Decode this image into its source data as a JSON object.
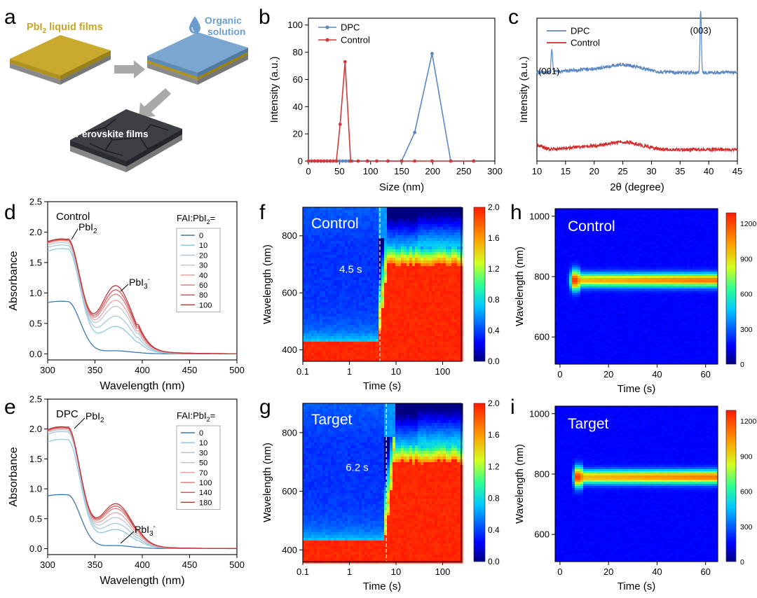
{
  "figure": {
    "panel_letters": [
      "a",
      "b",
      "c",
      "d",
      "e",
      "f",
      "g",
      "h",
      "i"
    ]
  },
  "schematic": {
    "film1_label": "PbI",
    "film1_sub": "2",
    "film1_rest": " liquid films",
    "solution_label_1": "Organic",
    "solution_label_2": "solution",
    "film3_label": "Perovskite films",
    "colors": {
      "pbi2": "#c9a92e",
      "organic": "#7aa6cf",
      "perovskite": "#3c4045"
    }
  },
  "chart_data": [
    {
      "panel": "b",
      "type": "line",
      "xlabel": "Size (nm)",
      "ylabel": "Intensity (a.u.)",
      "xlim": [
        0,
        300
      ],
      "ylim": [
        0,
        105
      ],
      "xticks": [
        0,
        50,
        100,
        150,
        200,
        250,
        300
      ],
      "yticks": [
        0,
        20,
        40,
        60,
        80,
        100
      ],
      "legend": [
        "DPC",
        "Control"
      ],
      "series": [
        {
          "name": "DPC",
          "color": "#5b87c0",
          "x": [
            0,
            5,
            10,
            15,
            20,
            25,
            30,
            35,
            40,
            45,
            50,
            55,
            60,
            65,
            70,
            80,
            95,
            110,
            128,
            150,
            171,
            199,
            229,
            266
          ],
          "y": [
            0,
            0,
            0,
            0,
            0,
            0,
            0,
            0,
            0,
            0,
            0,
            0,
            0,
            0,
            0,
            0,
            0,
            0,
            0,
            0,
            21,
            79,
            0,
            0
          ]
        },
        {
          "name": "Control",
          "color": "#cf3a3a",
          "x": [
            0,
            5,
            10,
            15,
            20,
            25,
            30,
            35,
            40,
            45,
            51,
            59,
            68,
            80,
            95,
            110,
            128,
            150,
            171,
            199,
            229,
            266
          ],
          "y": [
            0,
            0,
            0,
            0,
            0,
            0,
            0,
            0,
            0,
            0,
            27,
            73,
            0,
            0,
            0,
            0,
            0,
            0,
            0,
            0,
            0,
            0
          ]
        }
      ]
    },
    {
      "panel": "c",
      "type": "line",
      "xlabel": "2θ (degree)",
      "ylabel": "Intensity (a.u.)",
      "xlim": [
        10,
        45
      ],
      "xticks": [
        10,
        15,
        20,
        25,
        30,
        35,
        40,
        45
      ],
      "legend": [
        "DPC",
        "Control"
      ],
      "annotations": [
        "(001)",
        "(003)"
      ],
      "peaks": [
        {
          "x": 12.6,
          "label": "(001)"
        },
        {
          "x": 38.6,
          "label": "(003)"
        }
      ],
      "series": [
        {
          "name": "DPC",
          "color": "#5b87c0",
          "baseline": 0.62
        },
        {
          "name": "Control",
          "color": "#cf2b2b",
          "baseline": 0.08
        }
      ]
    },
    {
      "panel": "d",
      "type": "line",
      "title": "Control",
      "xlabel": "Wavelength (nm)",
      "ylabel": "Absorbance",
      "xlim": [
        300,
        500
      ],
      "ylim": [
        -0.1,
        2.5
      ],
      "xticks": [
        300,
        350,
        400,
        450,
        500
      ],
      "yticks": [
        0.0,
        0.5,
        1.0,
        1.5,
        2.0,
        2.5
      ],
      "peak_labels": [
        "PbI2",
        "PbI3-"
      ],
      "legend_title": "FAI:PbI2=",
      "series": [
        {
          "name": "0",
          "a320": 0.86,
          "a370": 0.05
        },
        {
          "name": "10",
          "a320": 1.72,
          "a370": 0.45
        },
        {
          "name": "20",
          "a320": 1.78,
          "a370": 0.62
        },
        {
          "name": "30",
          "a320": 1.82,
          "a370": 0.78
        },
        {
          "name": "40",
          "a320": 1.85,
          "a370": 0.88
        },
        {
          "name": "60",
          "a320": 1.86,
          "a370": 0.98
        },
        {
          "name": "80",
          "a320": 1.87,
          "a370": 1.05
        },
        {
          "name": "100",
          "a320": 1.88,
          "a370": 1.12
        }
      ]
    },
    {
      "panel": "e",
      "type": "line",
      "title": "DPC",
      "xlabel": "Wavelength (nm)",
      "ylabel": "Absorbance",
      "xlim": [
        300,
        500
      ],
      "ylim": [
        -0.1,
        2.5
      ],
      "xticks": [
        300,
        350,
        400,
        450,
        500
      ],
      "yticks": [
        0.0,
        0.5,
        1.0,
        1.5,
        2.0,
        2.5
      ],
      "peak_labels": [
        "PbI2",
        "PbI3-"
      ],
      "legend_title": "FAI:PbI2=",
      "series": [
        {
          "name": "0",
          "a320": 0.9,
          "a370": 0.05
        },
        {
          "name": "10",
          "a320": 1.82,
          "a370": 0.32
        },
        {
          "name": "30",
          "a320": 1.95,
          "a370": 0.42
        },
        {
          "name": "50",
          "a320": 1.98,
          "a370": 0.52
        },
        {
          "name": "70",
          "a320": 2.0,
          "a370": 0.6
        },
        {
          "name": "100",
          "a320": 2.01,
          "a370": 0.67
        },
        {
          "name": "140",
          "a320": 2.02,
          "a370": 0.71
        },
        {
          "name": "180",
          "a320": 2.03,
          "a370": 0.75
        }
      ]
    },
    {
      "panel": "f",
      "type": "heatmap",
      "title": "Control",
      "xlabel": "Time (s)",
      "ylabel": "Wavelength (nm)",
      "xscale": "log",
      "xlim": [
        0.1,
        250
      ],
      "ylim": [
        360,
        900
      ],
      "xticks": [
        0.1,
        1,
        10,
        100
      ],
      "yticks": [
        400,
        600,
        800
      ],
      "colorbar_ticks": [
        "0.0",
        "0.4",
        "0.8",
        "1.2",
        "1.6",
        "2.0"
      ],
      "transition_time": "4.5 s",
      "transition_value": 4.5
    },
    {
      "panel": "g",
      "type": "heatmap",
      "title": "Target",
      "xlabel": "Time (s)",
      "ylabel": "Wavelength (nm)",
      "xscale": "log",
      "xlim": [
        0.1,
        250
      ],
      "ylim": [
        360,
        900
      ],
      "xticks": [
        0.1,
        1,
        10,
        100
      ],
      "yticks": [
        400,
        600,
        800
      ],
      "colorbar_ticks": [
        "0.0",
        "0.4",
        "0.8",
        "1.2",
        "1.6",
        "2.0"
      ],
      "transition_time": "6.2 s",
      "transition_value": 6.2
    },
    {
      "panel": "h",
      "type": "heatmap",
      "title": "Control",
      "xlabel": "Time (s)",
      "ylabel": "Wavelength (nm)",
      "xlim": [
        -2,
        65
      ],
      "ylim": [
        510,
        1025
      ],
      "xticks": [
        0,
        20,
        40,
        60
      ],
      "yticks": [
        600,
        800,
        1000
      ],
      "colorbar_ticks": [
        "0",
        "300",
        "600",
        "900",
        "1200"
      ],
      "emission_center": 788,
      "onset_time": 6
    },
    {
      "panel": "i",
      "type": "heatmap",
      "title": "Target",
      "xlabel": "Time (s)",
      "ylabel": "Wavelength (nm)",
      "xlim": [
        -2,
        65
      ],
      "ylim": [
        510,
        1025
      ],
      "xticks": [
        0,
        20,
        40,
        60
      ],
      "yticks": [
        600,
        800,
        1000
      ],
      "colorbar_ticks": [
        "0",
        "300",
        "600",
        "900",
        "1200"
      ],
      "emission_center": 790,
      "onset_time": 7.5
    }
  ]
}
